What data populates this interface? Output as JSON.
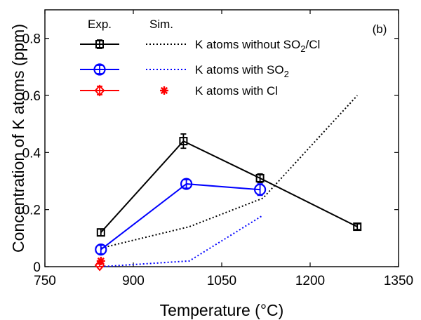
{
  "chart_data": {
    "type": "line",
    "panel_label": "(b)",
    "xlabel": "Temperature (°C)",
    "ylabel": "Concentration of K atoms (ppm)",
    "xlim": [
      750,
      1350
    ],
    "ylim": [
      0,
      0.9
    ],
    "xticks": [
      750,
      900,
      1050,
      1200,
      1350
    ],
    "yticks": [
      0,
      0.2,
      0.4,
      0.6,
      0.8
    ],
    "xtick_labels": [
      "750",
      "900",
      "1050",
      "1200",
      "1350"
    ],
    "ytick_labels": [
      "0",
      "0.2",
      "0.4",
      "0.6",
      "0.8"
    ],
    "legend": {
      "placement": "top",
      "exp_header": "Exp.",
      "sim_header": "Sim."
    },
    "series": [
      {
        "name": "K atoms without SO2/Cl",
        "label_main": "K atoms without SO",
        "label_sub": "2",
        "label_tail": "/Cl",
        "color": "#000000",
        "exp": {
          "marker": "square",
          "x": [
            845,
            985,
            1115,
            1280
          ],
          "y": [
            0.12,
            0.44,
            0.31,
            0.14
          ],
          "err": [
            0.012,
            0.025,
            0.015,
            0.01
          ]
        },
        "sim": {
          "style": "dotted",
          "x": [
            845,
            995,
            1120,
            1280
          ],
          "y": [
            0.065,
            0.14,
            0.24,
            0.6
          ]
        }
      },
      {
        "name": "K atoms with SO2",
        "label_main": "K atoms with SO",
        "label_sub": "2",
        "label_tail": "",
        "color": "#0000ff",
        "exp": {
          "marker": "circle",
          "x": [
            845,
            990,
            1115
          ],
          "y": [
            0.06,
            0.29,
            0.27
          ],
          "err": [
            0.015,
            0.015,
            0.02
          ]
        },
        "sim": {
          "style": "dotted",
          "x": [
            845,
            995,
            1120
          ],
          "y": [
            0.0,
            0.02,
            0.18
          ]
        }
      },
      {
        "name": "K atoms with Cl",
        "label_main": "K atoms with Cl",
        "label_sub": "",
        "label_tail": "",
        "color": "#ff0000",
        "exp": {
          "marker": "diamond",
          "x": [
            843
          ],
          "y": [
            0.005
          ],
          "err": [
            0.005
          ]
        },
        "sim": {
          "style": "star",
          "x": [
            845
          ],
          "y": [
            0.02
          ]
        }
      }
    ],
    "grid": false
  }
}
